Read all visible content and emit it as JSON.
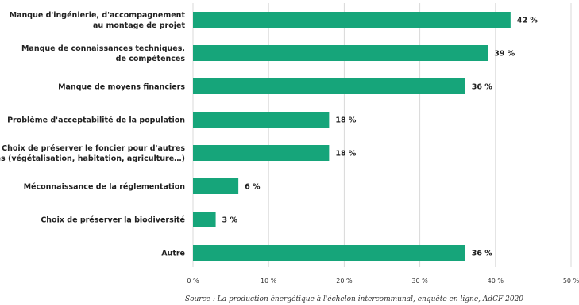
{
  "chart_data": {
    "type": "bar",
    "orientation": "horizontal",
    "categories": [
      [
        "Manque d'ingénierie, d'accompagnement",
        "au montage de projet"
      ],
      [
        "Manque de connaissances techniques,",
        "de compétences"
      ],
      [
        "Manque de moyens financiers"
      ],
      [
        "Problème d'acceptabilité de la population"
      ],
      [
        "Choix de préserver le foncier pour d'autres",
        "usages (végétalisation, habitation, agriculture…)"
      ],
      [
        "Méconnaissance de la réglementation"
      ],
      [
        "Choix de préserver la biodiversité"
      ],
      [
        "Autre"
      ]
    ],
    "values": [
      42,
      39,
      36,
      18,
      18,
      6,
      3,
      36
    ],
    "value_labels": [
      "42 %",
      "39 %",
      "36 %",
      "18 %",
      "18 %",
      "6 %",
      "3 %",
      "36 %"
    ],
    "xlim": [
      0,
      50
    ],
    "ticks": [
      0,
      10,
      20,
      30,
      40,
      50
    ],
    "tick_labels": [
      "0 %",
      "10 %",
      "20 %",
      "30 %",
      "40 %",
      "50 %"
    ],
    "grid": "vertical",
    "bar_color": "#16a57a",
    "source": "Source : La production énergétique à l'échelon intercommunal, enquête en ligne, AdCF 2020"
  }
}
